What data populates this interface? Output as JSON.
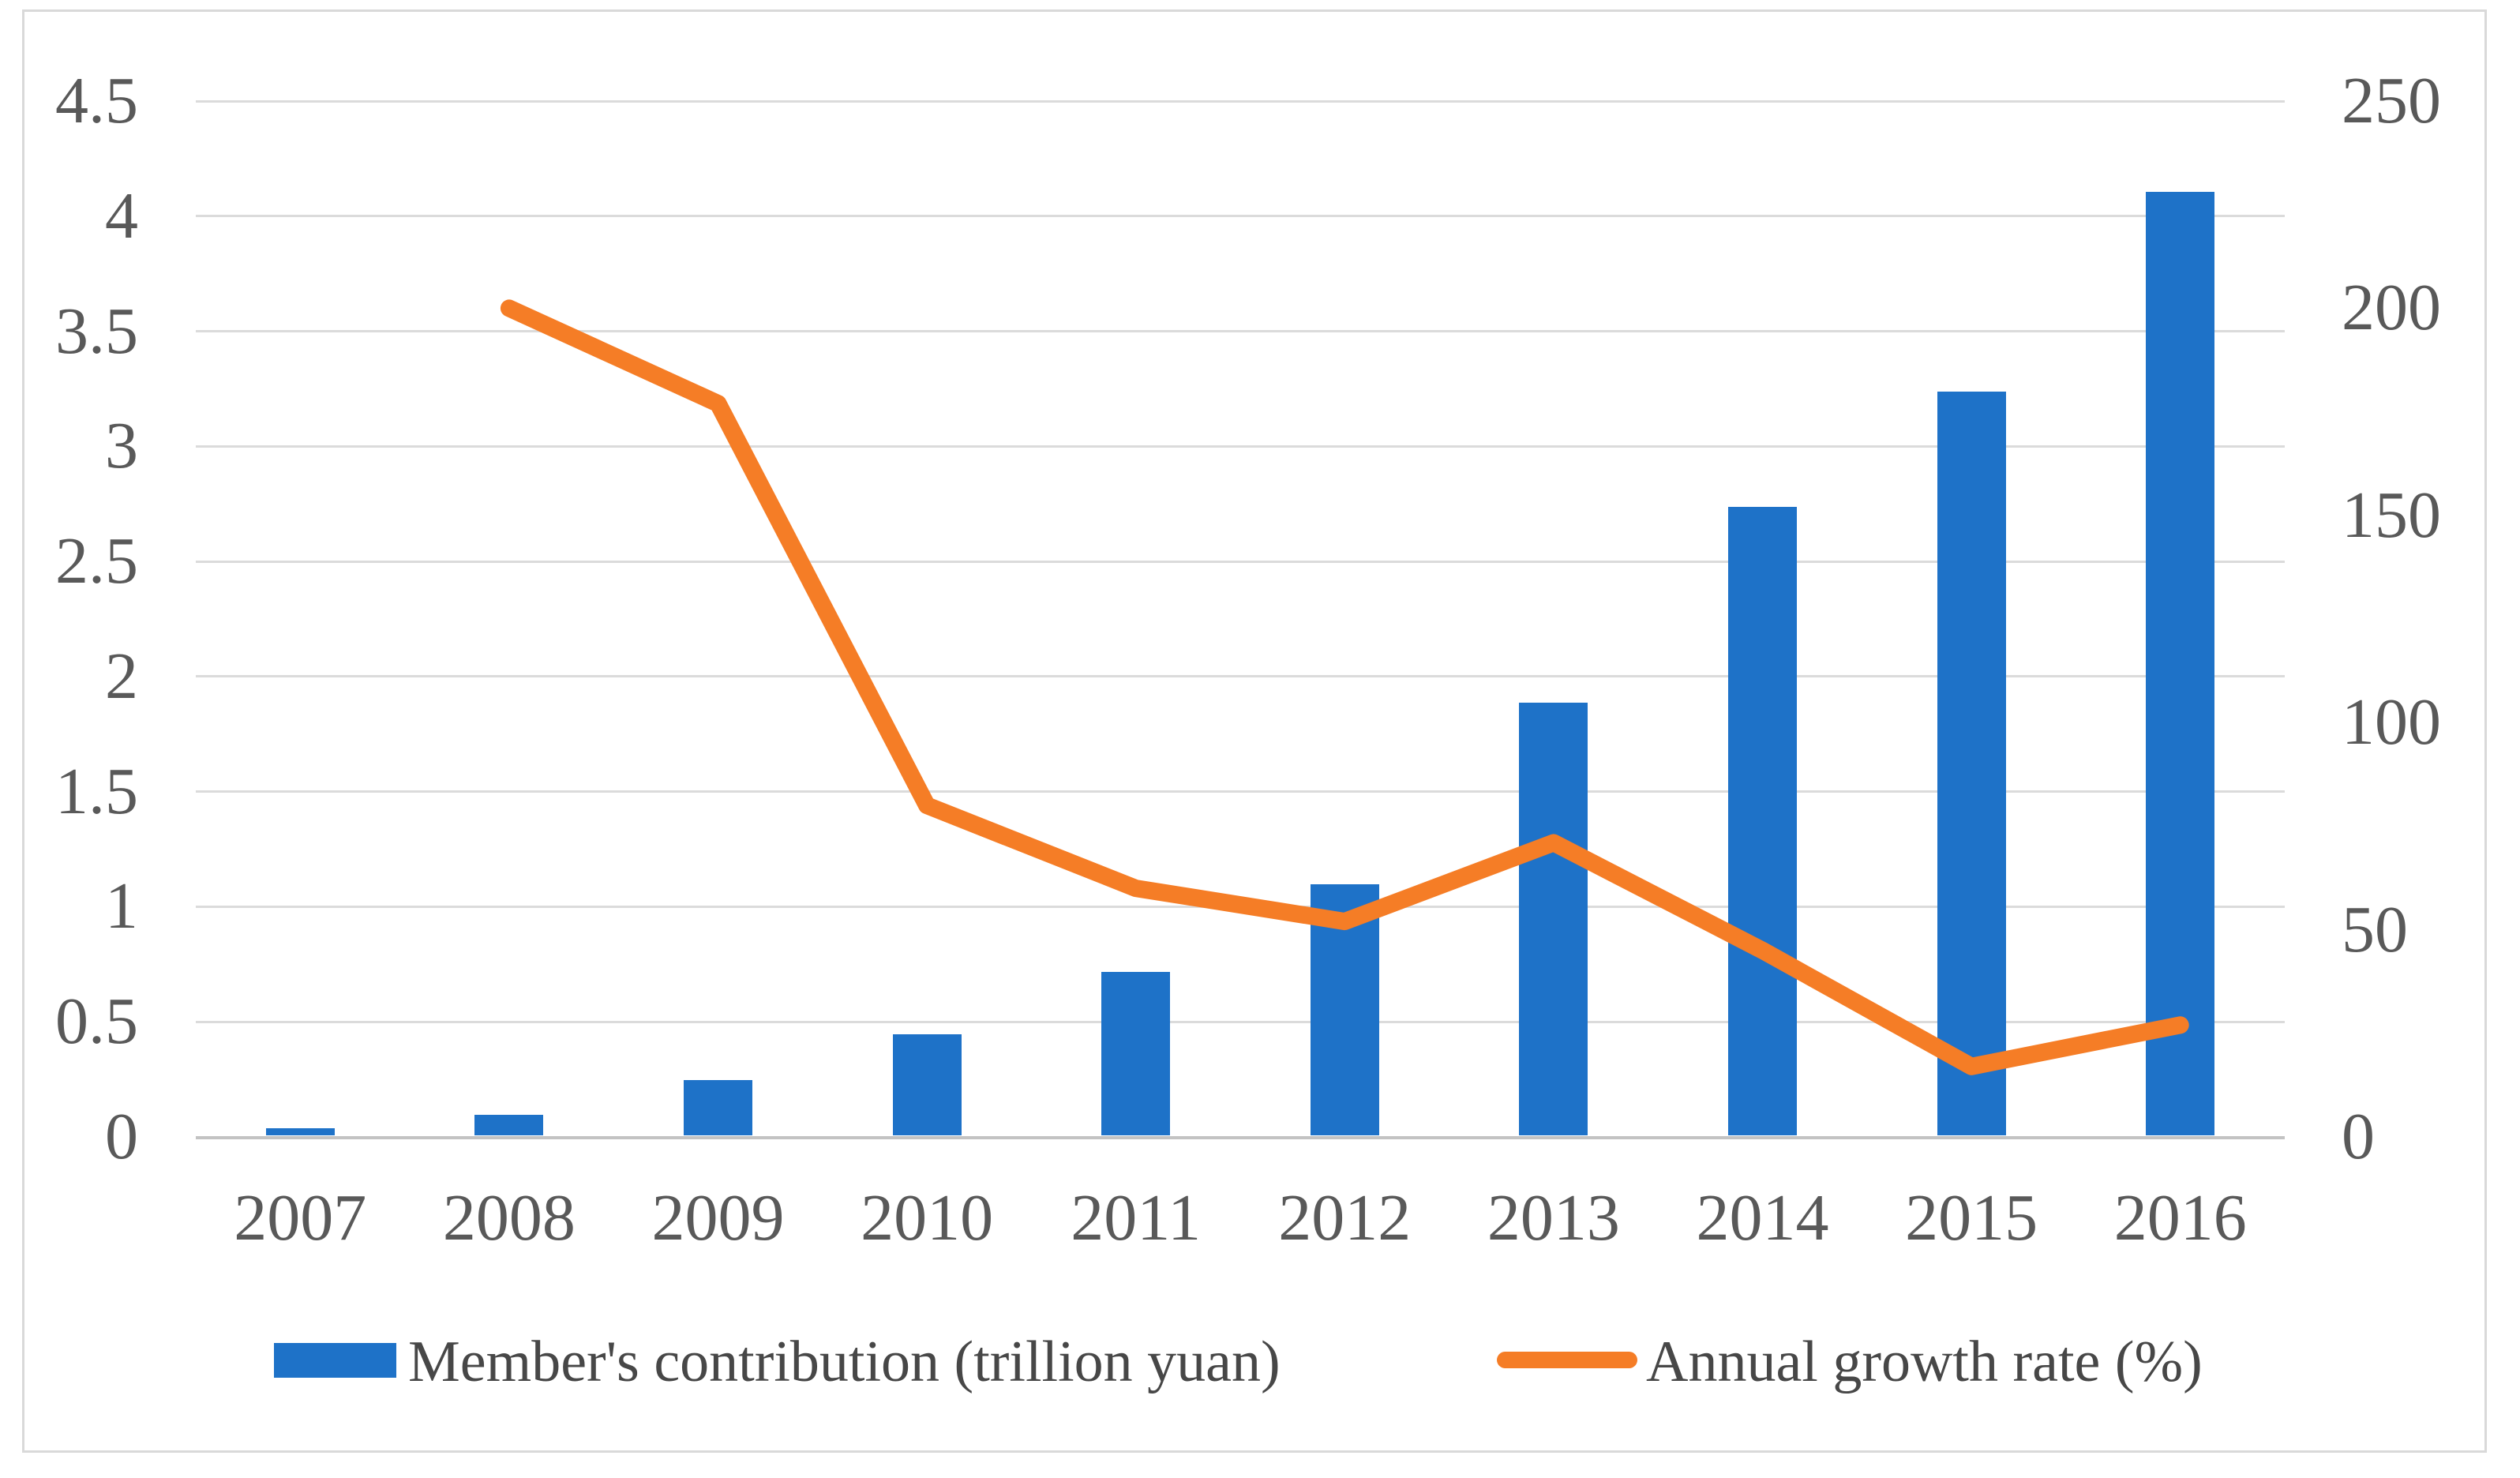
{
  "figure": {
    "background_color": "#ffffff",
    "border_color": "#d9d9d9",
    "gridline_color": "#dbdbdb",
    "axis_line_color": "#c3c3c3",
    "tick_label_color": "#595959",
    "legend_text_color": "#474747"
  },
  "chart_data": {
    "type": "bar",
    "subtype": "combo-bar-line-dual-axis",
    "title": "",
    "xlabel": "",
    "ylabel": "",
    "grid": true,
    "legend_position": "bottom",
    "categories": [
      "2007",
      "2008",
      "2009",
      "2010",
      "2011",
      "2012",
      "2013",
      "2014",
      "2015",
      "2016"
    ],
    "series": [
      {
        "name": "Member's contribution (trillion yuan)",
        "chart_type": "bar",
        "axis": "left",
        "color": "#1e72c8",
        "values": [
          0.03,
          0.09,
          0.24,
          0.44,
          0.71,
          1.09,
          1.88,
          2.73,
          3.23,
          4.1
        ]
      },
      {
        "name": "Annual growth rate (%)",
        "chart_type": "line",
        "axis": "right",
        "color": "#f57d26",
        "values": [
          null,
          200,
          177,
          80,
          60,
          52,
          71,
          45,
          17,
          27
        ]
      }
    ],
    "left_axis": {
      "min": 0,
      "max": 4.5,
      "step": 0.5,
      "tick_labels": [
        "4.5",
        "4",
        "3.5",
        "3",
        "2.5",
        "2",
        "1.5",
        "1",
        "0.5",
        "0"
      ]
    },
    "right_axis": {
      "min": 0,
      "max": 250,
      "step": 50,
      "tick_labels": [
        "250",
        "200",
        "150",
        "100",
        "50",
        "0"
      ]
    }
  }
}
